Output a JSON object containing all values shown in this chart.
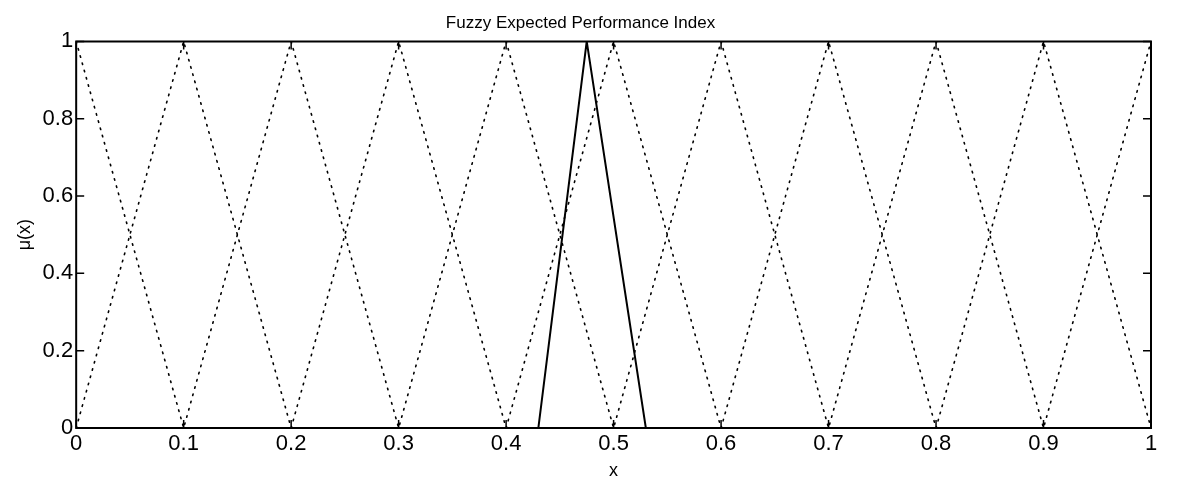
{
  "chart_data": {
    "type": "line",
    "title": "Fuzzy Expected Performance Index",
    "xlabel": "x",
    "ylabel": "μ(x)",
    "xlim": [
      0,
      1
    ],
    "xticks": [
      0,
      0.1,
      0.2,
      0.3,
      0.4,
      0.5,
      0.6,
      0.7,
      0.8,
      0.9,
      1
    ],
    "ylim": [
      0,
      1
    ],
    "yticks": [
      0,
      0.2,
      0.4,
      0.6,
      0.8,
      1
    ],
    "grid": false,
    "legend": false,
    "marker": "none",
    "series": [
      {
        "color": "#000000",
        "line_style": "dotted",
        "x": [
          0,
          0.1,
          0.2,
          0.3,
          0.4,
          0.5,
          0.6,
          0.7,
          0.8,
          0.9,
          1
        ],
        "values": [
          1,
          0,
          1,
          0,
          1,
          0,
          1,
          0,
          1,
          0,
          1
        ]
      },
      {
        "color": "#000000",
        "line_style": "dotted",
        "x": [
          0,
          0.1,
          0.2,
          0.3,
          0.4,
          0.5,
          0.6,
          0.7,
          0.8,
          0.9,
          1
        ],
        "values": [
          0,
          1,
          0,
          1,
          0,
          1,
          0,
          1,
          0,
          1,
          0
        ]
      },
      {
        "color": "#000000",
        "line_style": "solid",
        "x": [
          0.43,
          0.475,
          0.53
        ],
        "values": [
          0,
          1,
          0
        ]
      }
    ]
  }
}
